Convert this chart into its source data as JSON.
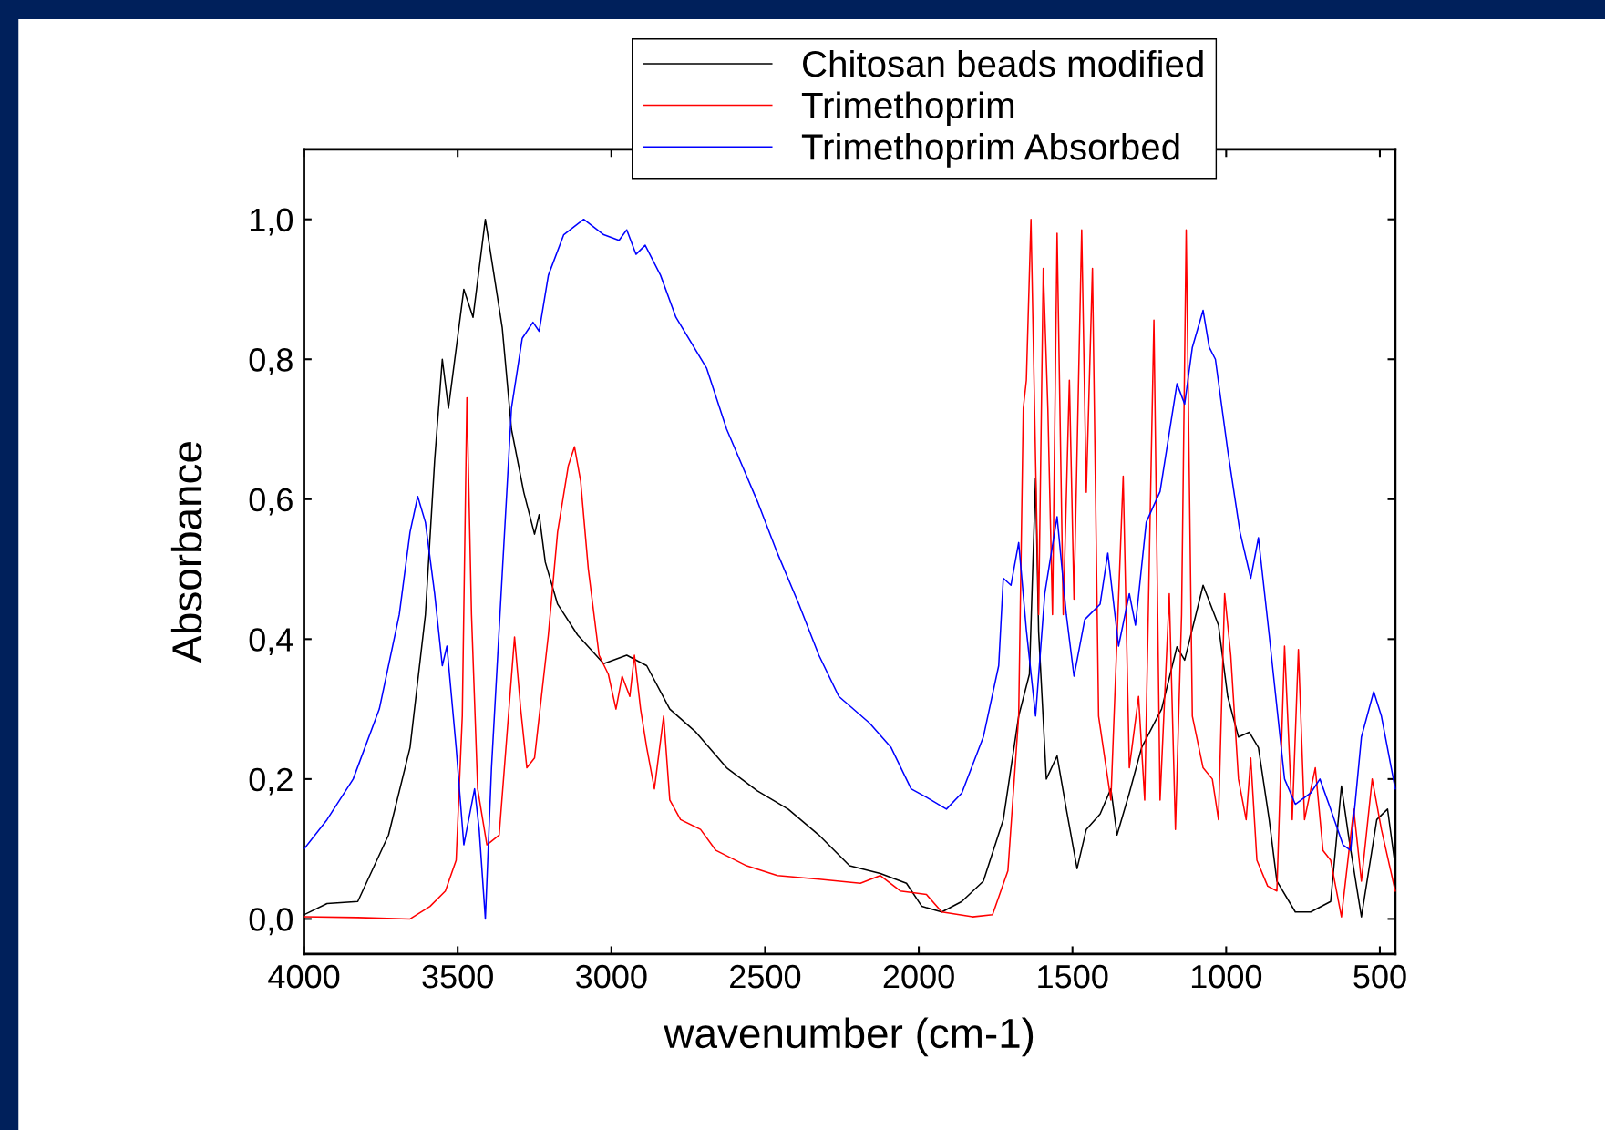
{
  "chart_data": {
    "type": "line",
    "xlabel": "wavenumber (cm-1)",
    "ylabel": "Absorbance",
    "xlim": [
      4000,
      450
    ],
    "ylim": [
      -0.05,
      1.1
    ],
    "xticks": [
      4000,
      3500,
      3000,
      2500,
      2000,
      1500,
      1000,
      500
    ],
    "yticks": [
      {
        "value": 0,
        "label": "0,0"
      },
      {
        "value": 0.2,
        "label": "0,2"
      },
      {
        "value": 0.4,
        "label": "0,4"
      },
      {
        "value": 0.6,
        "label": "0,6"
      },
      {
        "value": 0.8,
        "label": "0,8"
      },
      {
        "value": 1.0,
        "label": "1,0"
      }
    ],
    "grid": false,
    "legend": "top",
    "line_style": "solid",
    "marker": "none",
    "series": [
      {
        "name": "Chitosan beads modified",
        "color": "#000000",
        "x": [
          4000,
          3925,
          3825,
          3725,
          3655,
          3605,
          3575,
          3550,
          3530,
          3480,
          3450,
          3410,
          3355,
          3325,
          3285,
          3250,
          3235,
          3215,
          3175,
          3110,
          3025,
          2950,
          2885,
          2810,
          2725,
          2625,
          2525,
          2425,
          2325,
          2225,
          2125,
          2040,
          1990,
          1925,
          1860,
          1790,
          1725,
          1675,
          1640,
          1620,
          1610,
          1585,
          1550,
          1520,
          1485,
          1455,
          1410,
          1375,
          1355,
          1315,
          1275,
          1210,
          1160,
          1135,
          1075,
          1025,
          995,
          960,
          925,
          895,
          860,
          835,
          775,
          725,
          660,
          625,
          600,
          560,
          510,
          475,
          450
        ],
        "values": [
          0.006,
          0.022,
          0.025,
          0.12,
          0.245,
          0.435,
          0.655,
          0.8,
          0.73,
          0.9,
          0.86,
          1.0,
          0.845,
          0.7,
          0.61,
          0.55,
          0.578,
          0.51,
          0.45,
          0.406,
          0.365,
          0.377,
          0.362,
          0.3,
          0.267,
          0.216,
          0.183,
          0.157,
          0.12,
          0.076,
          0.065,
          0.051,
          0.018,
          0.01,
          0.025,
          0.054,
          0.142,
          0.29,
          0.35,
          0.63,
          0.41,
          0.2,
          0.233,
          0.157,
          0.072,
          0.128,
          0.15,
          0.186,
          0.12,
          0.18,
          0.245,
          0.3,
          0.389,
          0.37,
          0.477,
          0.42,
          0.318,
          0.26,
          0.267,
          0.245,
          0.142,
          0.054,
          0.01,
          0.01,
          0.025,
          0.19,
          0.113,
          0.003,
          0.142,
          0.157,
          0.076
        ]
      },
      {
        "name": "Trimethoprim",
        "color": "#ff0000",
        "x": [
          4000,
          3825,
          3655,
          3590,
          3540,
          3505,
          3485,
          3470,
          3455,
          3435,
          3405,
          3365,
          3335,
          3315,
          3295,
          3275,
          3250,
          3205,
          3175,
          3140,
          3120,
          3100,
          3075,
          3040,
          3010,
          2985,
          2965,
          2940,
          2925,
          2905,
          2885,
          2860,
          2830,
          2810,
          2775,
          2710,
          2660,
          2560,
          2460,
          2325,
          2190,
          2125,
          2060,
          1975,
          1925,
          1825,
          1760,
          1710,
          1675,
          1660,
          1650,
          1635,
          1620,
          1610,
          1595,
          1580,
          1565,
          1550,
          1530,
          1510,
          1495,
          1470,
          1455,
          1435,
          1415,
          1375,
          1335,
          1315,
          1285,
          1265,
          1235,
          1215,
          1185,
          1165,
          1145,
          1130,
          1110,
          1075,
          1045,
          1025,
          1005,
          985,
          960,
          935,
          920,
          900,
          865,
          835,
          810,
          785,
          765,
          745,
          710,
          685,
          660,
          625,
          585,
          560,
          525,
          495,
          450
        ],
        "values": [
          0.003,
          0.002,
          0.0,
          0.018,
          0.04,
          0.084,
          0.29,
          0.745,
          0.435,
          0.186,
          0.106,
          0.12,
          0.29,
          0.403,
          0.3,
          0.216,
          0.23,
          0.406,
          0.553,
          0.648,
          0.675,
          0.626,
          0.5,
          0.377,
          0.35,
          0.3,
          0.347,
          0.318,
          0.377,
          0.3,
          0.245,
          0.186,
          0.29,
          0.17,
          0.142,
          0.128,
          0.098,
          0.076,
          0.062,
          0.057,
          0.051,
          0.062,
          0.04,
          0.035,
          0.01,
          0.003,
          0.006,
          0.069,
          0.29,
          0.73,
          0.77,
          1.0,
          0.655,
          0.435,
          0.93,
          0.73,
          0.435,
          0.98,
          0.435,
          0.77,
          0.457,
          0.985,
          0.61,
          0.93,
          0.29,
          0.17,
          0.633,
          0.216,
          0.318,
          0.17,
          0.856,
          0.17,
          0.465,
          0.128,
          0.435,
          0.985,
          0.29,
          0.216,
          0.2,
          0.142,
          0.465,
          0.377,
          0.2,
          0.142,
          0.23,
          0.084,
          0.047,
          0.04,
          0.39,
          0.142,
          0.385,
          0.142,
          0.216,
          0.098,
          0.084,
          0.003,
          0.157,
          0.054,
          0.2,
          0.128,
          0.04
        ]
      },
      {
        "name": "Trimethoprim Absorbed",
        "color": "#0000ff",
        "x": [
          4000,
          3925,
          3840,
          3755,
          3690,
          3655,
          3630,
          3605,
          3575,
          3550,
          3535,
          3505,
          3480,
          3445,
          3430,
          3410,
          3390,
          3355,
          3325,
          3290,
          3255,
          3235,
          3205,
          3155,
          3090,
          3025,
          2975,
          2950,
          2920,
          2890,
          2840,
          2790,
          2690,
          2625,
          2525,
          2460,
          2390,
          2325,
          2260,
          2160,
          2090,
          2025,
          1975,
          1910,
          1860,
          1790,
          1740,
          1725,
          1700,
          1675,
          1650,
          1620,
          1590,
          1550,
          1520,
          1495,
          1460,
          1410,
          1385,
          1350,
          1315,
          1295,
          1260,
          1215,
          1160,
          1135,
          1110,
          1075,
          1055,
          1035,
          995,
          955,
          920,
          895,
          860,
          810,
          775,
          725,
          695,
          660,
          620,
          595,
          560,
          520,
          495,
          450
        ],
        "values": [
          0.1,
          0.142,
          0.2,
          0.3,
          0.435,
          0.553,
          0.604,
          0.567,
          0.465,
          0.362,
          0.39,
          0.245,
          0.106,
          0.186,
          0.128,
          0.0,
          0.216,
          0.494,
          0.73,
          0.83,
          0.853,
          0.84,
          0.92,
          0.978,
          1.0,
          0.978,
          0.97,
          0.985,
          0.95,
          0.963,
          0.92,
          0.86,
          0.787,
          0.7,
          0.597,
          0.523,
          0.45,
          0.377,
          0.318,
          0.28,
          0.245,
          0.186,
          0.174,
          0.157,
          0.18,
          0.26,
          0.362,
          0.487,
          0.477,
          0.538,
          0.413,
          0.29,
          0.465,
          0.575,
          0.435,
          0.347,
          0.428,
          0.45,
          0.523,
          0.39,
          0.465,
          0.42,
          0.567,
          0.611,
          0.765,
          0.736,
          0.817,
          0.87,
          0.817,
          0.8,
          0.67,
          0.553,
          0.487,
          0.545,
          0.406,
          0.2,
          0.164,
          0.18,
          0.2,
          0.157,
          0.106,
          0.098,
          0.26,
          0.325,
          0.29,
          0.186
        ]
      }
    ]
  }
}
